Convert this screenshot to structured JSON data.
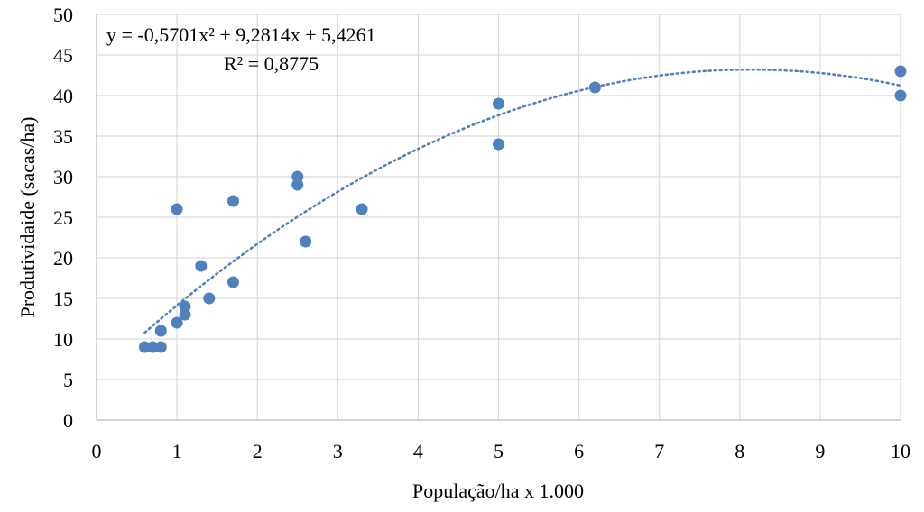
{
  "chart_data": {
    "type": "scatter",
    "xlabel": "População/ha x 1.000",
    "ylabel": "Produtividaide (sacas/ha)",
    "xlim": [
      0,
      10
    ],
    "ylim": [
      0,
      50
    ],
    "xticks": [
      0,
      1,
      2,
      3,
      4,
      5,
      6,
      7,
      8,
      9,
      10
    ],
    "yticks": [
      0,
      5,
      10,
      15,
      20,
      25,
      30,
      35,
      40,
      45,
      50
    ],
    "grid": true,
    "legend": "none",
    "marker_color": "#4f81bd",
    "trendline": {
      "type": "polynomial",
      "order": 2,
      "coefficients": {
        "a": -0.5701,
        "b": 9.2814,
        "c": 5.4261
      },
      "x_range": [
        0.6,
        10
      ],
      "equation_text": "y = -0,5701x² + 9,2814x + 5,4261",
      "r2_text": "R² = 0,8775",
      "color": "#4f81bd",
      "style": "dotted"
    },
    "points": [
      {
        "x": 0.6,
        "y": 9
      },
      {
        "x": 0.7,
        "y": 9
      },
      {
        "x": 0.8,
        "y": 9
      },
      {
        "x": 0.8,
        "y": 11
      },
      {
        "x": 1.0,
        "y": 12
      },
      {
        "x": 1.1,
        "y": 13
      },
      {
        "x": 1.1,
        "y": 14
      },
      {
        "x": 1.0,
        "y": 26
      },
      {
        "x": 1.3,
        "y": 19
      },
      {
        "x": 1.4,
        "y": 15
      },
      {
        "x": 1.7,
        "y": 17
      },
      {
        "x": 1.7,
        "y": 27
      },
      {
        "x": 2.5,
        "y": 29
      },
      {
        "x": 2.5,
        "y": 30
      },
      {
        "x": 2.6,
        "y": 22
      },
      {
        "x": 3.3,
        "y": 26
      },
      {
        "x": 5.0,
        "y": 34
      },
      {
        "x": 5.0,
        "y": 39
      },
      {
        "x": 6.2,
        "y": 41
      },
      {
        "x": 10.0,
        "y": 40
      },
      {
        "x": 10.0,
        "y": 43
      }
    ]
  }
}
